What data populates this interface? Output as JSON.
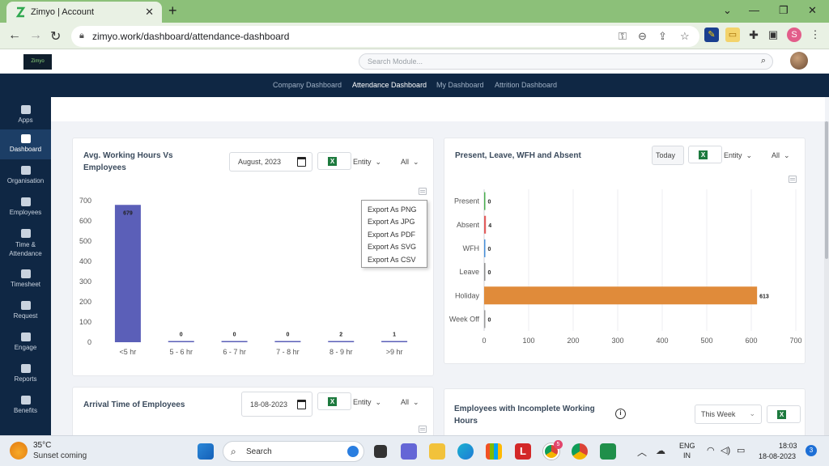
{
  "browser": {
    "tab_title": "Zimyo | Account",
    "tab_close": "✕",
    "new_tab": "+",
    "url": "zimyo.work/dashboard/attendance-dashboard",
    "profile_initial": "S"
  },
  "app": {
    "logo_text": "Zimyo",
    "search_placeholder": "Search Module..."
  },
  "top_nav": [
    "Company Dashboard",
    "Attendance Dashboard",
    "My Dashboard",
    "Attrition Dashboard"
  ],
  "active_top_nav": "Attendance Dashboard",
  "sidebar": [
    {
      "label": "Apps",
      "icon": "apps-icon"
    },
    {
      "label": "Dashboard",
      "icon": "dashboard-icon"
    },
    {
      "label": "Organisation",
      "icon": "organisation-icon"
    },
    {
      "label": "Employees",
      "icon": "employees-icon"
    },
    {
      "label": "Time &",
      "label2": "Attendance",
      "icon": "clock-icon"
    },
    {
      "label": "Timesheet",
      "icon": "timesheet-icon"
    },
    {
      "label": "Request",
      "icon": "request-icon"
    },
    {
      "label": "Engage",
      "icon": "engage-icon"
    },
    {
      "label": "Reports",
      "icon": "reports-icon"
    },
    {
      "label": "Benefits",
      "icon": "benefits-icon"
    }
  ],
  "active_sidebar": "Dashboard",
  "card_avg_hours": {
    "title_line1": "Avg. Working Hours Vs",
    "title_line2": "Employees",
    "date_value": "August, 2023",
    "entity_label": "Entity",
    "all_label": "All",
    "export_menu": [
      "Export As PNG",
      "Export As JPG",
      "Export As PDF",
      "Export As SVG",
      "Export As CSV"
    ]
  },
  "card_presence": {
    "title": "Present, Leave, WFH and Absent",
    "today_label": "Today",
    "entity_label": "Entity",
    "all_label": "All"
  },
  "card_arrival": {
    "title": "Arrival Time of Employees",
    "date_value": "18-08-2023",
    "entity_label": "Entity",
    "all_label": "All"
  },
  "card_incomplete": {
    "title_line1": "Employees with Incomplete Working",
    "title_line2": "Hours",
    "period_value": "This Week"
  },
  "chart_data": [
    {
      "type": "bar",
      "categories": [
        "<5 hr",
        "5 - 6 hr",
        "6 - 7 hr",
        "7 - 8 hr",
        "8 - 9 hr",
        ">9 hr"
      ],
      "values": [
        679,
        0,
        0,
        0,
        2,
        1
      ],
      "ylim": [
        0,
        700
      ],
      "yticks": [
        0,
        100,
        200,
        300,
        400,
        500,
        600,
        700
      ],
      "color": "#5b5fb8",
      "grid": false
    },
    {
      "type": "bar",
      "orientation": "horizontal",
      "categories": [
        "Present",
        "Absent",
        "WFH",
        "Leave",
        "Holiday",
        "Week Off"
      ],
      "values": [
        0,
        4,
        0,
        0,
        613,
        0
      ],
      "xlim": [
        0,
        700
      ],
      "xticks": [
        0,
        100,
        200,
        300,
        400,
        500,
        600,
        700
      ],
      "colors": [
        "#4caf50",
        "#e25d5d",
        "#4a90d9",
        "#8e8e8e",
        "#e08b3a",
        "#9b9b9b"
      ],
      "grid": true
    }
  ],
  "taskbar": {
    "weather_temp": "35°C",
    "weather_desc": "Sunset coming",
    "search": "Search",
    "lang1": "ENG",
    "lang2": "IN",
    "time": "18:03",
    "date": "18-08-2023",
    "notif": "3",
    "chrome_badge": "5"
  }
}
